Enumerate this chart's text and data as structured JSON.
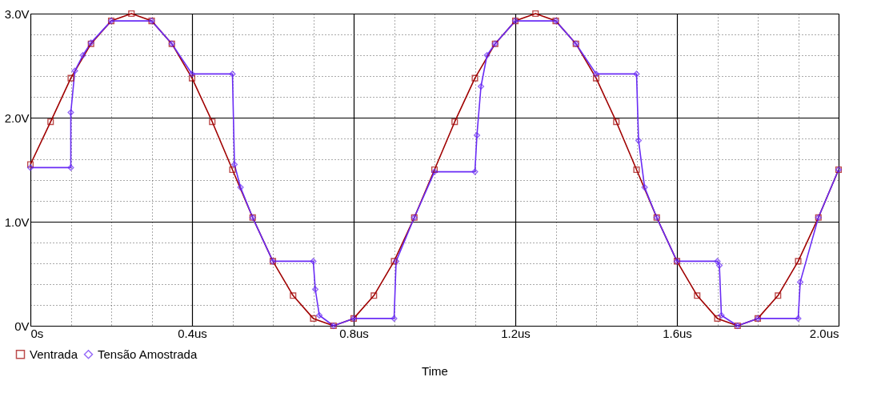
{
  "chart_data": {
    "type": "line",
    "xlabel": "Time",
    "legend": "bottom left",
    "grid": true,
    "xlim": [
      0,
      2.0
    ],
    "ylim": [
      0,
      3.0
    ],
    "xticks": [
      {
        "value": 0,
        "label": "0s"
      },
      {
        "value": 0.1,
        "label": null
      },
      {
        "value": 0.2,
        "label": null
      },
      {
        "value": 0.3,
        "label": null
      },
      {
        "value": 0.4,
        "label": "0.4us"
      },
      {
        "value": 0.5,
        "label": null
      },
      {
        "value": 0.6,
        "label": null
      },
      {
        "value": 0.7,
        "label": null
      },
      {
        "value": 0.8,
        "label": "0.8us"
      },
      {
        "value": 0.9,
        "label": null
      },
      {
        "value": 1.0,
        "label": null
      },
      {
        "value": 1.1,
        "label": null
      },
      {
        "value": 1.2,
        "label": "1.2us"
      },
      {
        "value": 1.3,
        "label": null
      },
      {
        "value": 1.4,
        "label": null
      },
      {
        "value": 1.5,
        "label": null
      },
      {
        "value": 1.6,
        "label": "1.6us"
      },
      {
        "value": 1.7,
        "label": null
      },
      {
        "value": 1.8,
        "label": null
      },
      {
        "value": 1.9,
        "label": null
      },
      {
        "value": 2.0,
        "label": "2.0us"
      }
    ],
    "yticks": [
      {
        "value": 0,
        "label": "0V"
      },
      {
        "value": 0.2,
        "label": null
      },
      {
        "value": 0.4,
        "label": null
      },
      {
        "value": 0.6,
        "label": null
      },
      {
        "value": 0.8,
        "label": null
      },
      {
        "value": 1.0,
        "label": "1.0V"
      },
      {
        "value": 1.2,
        "label": null
      },
      {
        "value": 1.4,
        "label": null
      },
      {
        "value": 1.6,
        "label": null
      },
      {
        "value": 1.8,
        "label": null
      },
      {
        "value": 2.0,
        "label": "2.0V"
      },
      {
        "value": 2.2,
        "label": null
      },
      {
        "value": 2.4,
        "label": null
      },
      {
        "value": 2.6,
        "label": null
      },
      {
        "value": 2.8,
        "label": null
      },
      {
        "value": 3.0,
        "label": "3.0V"
      }
    ],
    "series": [
      {
        "name": "Ventrada",
        "color": "#a00000",
        "marker": "square",
        "x": [
          0,
          0.05,
          0.1,
          0.15,
          0.2,
          0.25,
          0.3,
          0.35,
          0.4,
          0.45,
          0.5,
          0.55,
          0.6,
          0.65,
          0.7,
          0.75,
          0.8,
          0.85,
          0.9,
          0.95,
          1.0,
          1.05,
          1.1,
          1.15,
          1.2,
          1.25,
          1.3,
          1.35,
          1.4,
          1.45,
          1.5,
          1.55,
          1.6,
          1.65,
          1.7,
          1.75,
          1.8,
          1.85,
          1.9,
          1.95,
          2.0
        ],
        "values": [
          1.55,
          1.96,
          2.38,
          2.71,
          2.93,
          3.0,
          2.93,
          2.71,
          2.38,
          1.96,
          1.5,
          1.04,
          0.62,
          0.29,
          0.07,
          0.0,
          0.07,
          0.29,
          0.62,
          1.04,
          1.5,
          1.96,
          2.38,
          2.71,
          2.93,
          3.0,
          2.93,
          2.71,
          2.38,
          1.96,
          1.5,
          1.04,
          0.62,
          0.29,
          0.07,
          0.0,
          0.07,
          0.29,
          0.62,
          1.04,
          1.5
        ]
      },
      {
        "name": "Tensão Amostrada",
        "color": "#6a2cf5",
        "marker": "diamond",
        "x": [
          0,
          0.1,
          0.1,
          0.11,
          0.13,
          0.15,
          0.2,
          0.3,
          0.35,
          0.4,
          0.5,
          0.505,
          0.52,
          0.55,
          0.6,
          0.7,
          0.705,
          0.715,
          0.75,
          0.8,
          0.9,
          0.905,
          0.95,
          1.0,
          1.1,
          1.105,
          1.115,
          1.13,
          1.15,
          1.2,
          1.3,
          1.35,
          1.4,
          1.5,
          1.505,
          1.52,
          1.55,
          1.6,
          1.7,
          1.705,
          1.71,
          1.75,
          1.8,
          1.9,
          1.905,
          1.95,
          2.0
        ],
        "values": [
          1.52,
          1.52,
          2.05,
          2.45,
          2.6,
          2.72,
          2.93,
          2.93,
          2.71,
          2.42,
          2.42,
          1.55,
          1.33,
          1.04,
          0.62,
          0.62,
          0.35,
          0.1,
          0.0,
          0.07,
          0.07,
          0.62,
          1.04,
          1.48,
          1.48,
          1.83,
          2.3,
          2.6,
          2.71,
          2.93,
          2.93,
          2.71,
          2.42,
          2.42,
          1.78,
          1.33,
          1.04,
          0.62,
          0.62,
          0.58,
          0.1,
          0.0,
          0.07,
          0.07,
          0.42,
          1.04,
          1.5
        ]
      }
    ]
  }
}
